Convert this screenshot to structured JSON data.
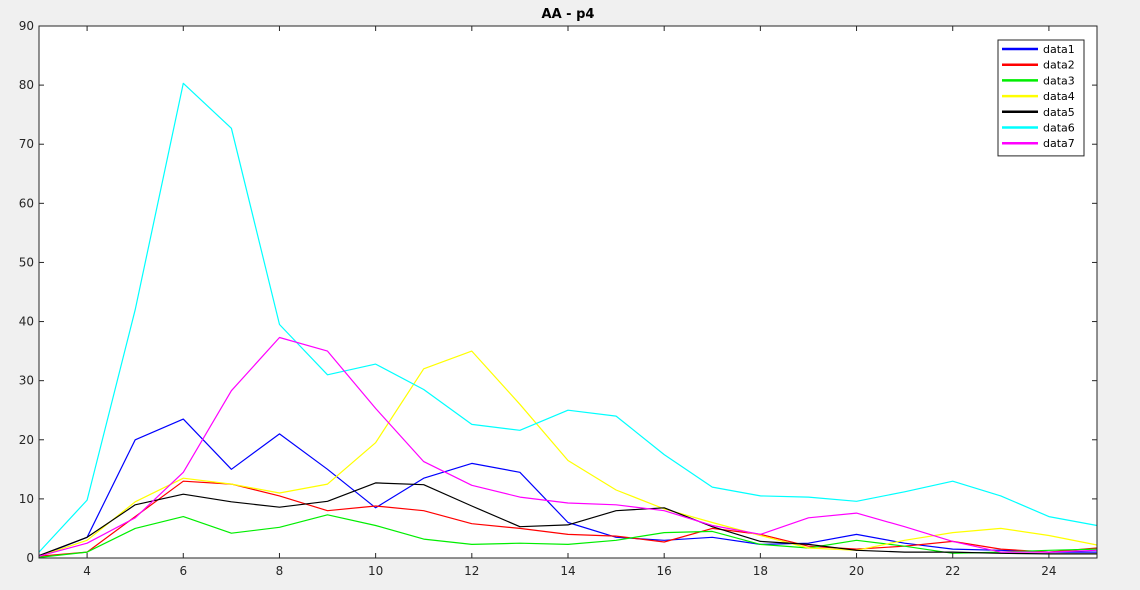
{
  "chart_data": {
    "type": "line",
    "title": "AA - p4",
    "xlabel": "",
    "ylabel": "",
    "xlim": [
      3,
      25
    ],
    "ylim": [
      0,
      90
    ],
    "xticks": [
      4,
      6,
      8,
      10,
      12,
      14,
      16,
      18,
      20,
      22,
      24
    ],
    "yticks": [
      0,
      10,
      20,
      30,
      40,
      50,
      60,
      70,
      80,
      90
    ],
    "grid": false,
    "legend_position": "top-right",
    "x": [
      3,
      4,
      5,
      6,
      7,
      8,
      9,
      10,
      11,
      12,
      13,
      14,
      15,
      16,
      17,
      18,
      19,
      20,
      21,
      22,
      23,
      24,
      25
    ],
    "series": [
      {
        "name": "data1",
        "color": "#0000ff",
        "values": [
          0.3,
          3.5,
          20.0,
          23.5,
          15.0,
          21.0,
          15.0,
          8.5,
          13.5,
          16.0,
          14.5,
          6.0,
          3.5,
          3.0,
          3.5,
          2.3,
          2.5,
          4.0,
          2.5,
          1.5,
          1.3,
          1.0,
          1.0
        ]
      },
      {
        "name": "data2",
        "color": "#ff0000",
        "values": [
          0.3,
          1.0,
          7.0,
          13.0,
          12.5,
          10.5,
          8.0,
          8.8,
          8.0,
          5.8,
          5.0,
          4.0,
          3.7,
          2.7,
          5.0,
          4.0,
          2.0,
          1.5,
          2.0,
          2.8,
          1.5,
          1.0,
          1.7
        ]
      },
      {
        "name": "data3",
        "color": "#00ee00",
        "values": [
          0.1,
          1.0,
          5.0,
          7.0,
          4.2,
          5.2,
          7.3,
          5.5,
          3.2,
          2.3,
          2.5,
          2.3,
          3.0,
          4.3,
          4.5,
          2.3,
          1.7,
          3.0,
          2.0,
          0.8,
          1.0,
          1.3,
          1.5
        ]
      },
      {
        "name": "data4",
        "color": "#ffff00",
        "values": [
          0.3,
          3.0,
          9.5,
          13.5,
          12.5,
          11.0,
          12.5,
          19.5,
          32.0,
          35.0,
          26.0,
          16.5,
          11.5,
          8.3,
          6.0,
          3.8,
          1.7,
          1.3,
          3.0,
          4.3,
          5.0,
          3.8,
          2.2
        ]
      },
      {
        "name": "data5",
        "color": "#000000",
        "values": [
          0.4,
          3.5,
          9.0,
          10.8,
          9.5,
          8.6,
          9.6,
          12.7,
          12.4,
          8.8,
          5.3,
          5.6,
          8.0,
          8.5,
          5.3,
          2.8,
          2.3,
          1.3,
          1.0,
          1.0,
          0.8,
          0.7,
          0.7
        ]
      },
      {
        "name": "data6",
        "color": "#00ffff",
        "values": [
          1.0,
          9.8,
          42.0,
          80.3,
          72.7,
          39.5,
          31.0,
          32.8,
          28.5,
          22.6,
          21.6,
          25.0,
          24.0,
          17.5,
          12.0,
          10.5,
          10.3,
          9.6,
          11.2,
          13.0,
          10.5,
          7.0,
          5.5
        ]
      },
      {
        "name": "data7",
        "color": "#ff00ff",
        "values": [
          0.3,
          2.5,
          6.8,
          14.5,
          28.3,
          37.3,
          35.0,
          25.3,
          16.3,
          12.3,
          10.3,
          9.3,
          9.0,
          8.0,
          5.5,
          4.0,
          6.8,
          7.6,
          5.3,
          2.8,
          1.0,
          1.0,
          1.3
        ]
      }
    ]
  }
}
